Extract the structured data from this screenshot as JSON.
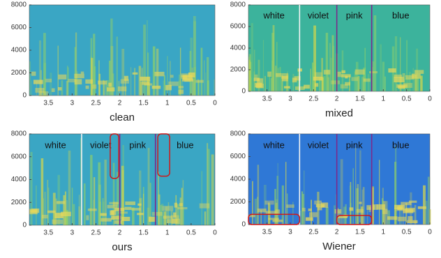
{
  "chart_data": [
    {
      "type": "spectrogram",
      "title": "clean",
      "background_color": "#3aa6c4",
      "xlim": [
        3.9,
        0
      ],
      "xticks": [
        3.5,
        3,
        2.5,
        2,
        1.5,
        1,
        0.5,
        0
      ],
      "ylim": [
        0,
        8000
      ],
      "yticks": [
        0,
        2000,
        4000,
        6000,
        8000
      ]
    },
    {
      "type": "spectrogram",
      "title": "mixed",
      "background_color": "#3cb39c",
      "xlim": [
        3.9,
        0
      ],
      "xticks": [
        3.5,
        3,
        2.5,
        2,
        1.5,
        1,
        0.5,
        0
      ],
      "ylim": [
        0,
        8000
      ],
      "yticks": [
        0,
        2000,
        4000,
        6000,
        8000
      ],
      "segments": [
        "white",
        "violet",
        "pink",
        "blue"
      ],
      "boundaries": [
        2.8,
        2.0,
        1.25
      ],
      "boundary_colors": [
        "#f4f4f4",
        "#7a2a8c",
        "#7a2a8c"
      ]
    },
    {
      "type": "spectrogram",
      "title": "ours",
      "background_color": "#3aa6c4",
      "xlim": [
        3.9,
        0
      ],
      "xticks": [
        3.5,
        3,
        2.5,
        2,
        1.5,
        1,
        0.5,
        0
      ],
      "ylim": [
        0,
        8000
      ],
      "yticks": [
        0,
        2000,
        4000,
        6000,
        8000
      ],
      "segments": [
        "white",
        "violet",
        "pink",
        "blue"
      ],
      "boundaries": [
        2.8,
        2.0,
        1.25
      ],
      "boundary_colors": [
        "#f4f4f4",
        "#7a2a8c",
        "#7a2a8c"
      ],
      "highlight_color": "#d01818",
      "highlights": [
        {
          "x": [
            2.2,
            2.02
          ],
          "y": [
            4100,
            8000
          ]
        },
        {
          "x": [
            1.2,
            0.95
          ],
          "y": [
            4300,
            8000
          ]
        }
      ]
    },
    {
      "type": "spectrogram",
      "title": "Wiener",
      "background_color": "#2f78d6",
      "xlim": [
        3.9,
        0
      ],
      "xticks": [
        3.5,
        3,
        2.5,
        2,
        1.5,
        1,
        0.5,
        0
      ],
      "ylim": [
        0,
        8000
      ],
      "yticks": [
        0,
        2000,
        4000,
        6000,
        8000
      ],
      "segments": [
        "white",
        "violet",
        "pink",
        "blue"
      ],
      "boundaries": [
        2.8,
        2.0,
        1.25
      ],
      "boundary_colors": [
        "#f4f4f4",
        "#7a2a8c",
        "#7a2a8c"
      ],
      "highlight_color": "#d01818",
      "highlights": [
        {
          "x": [
            3.9,
            2.8
          ],
          "y": [
            0,
            900
          ]
        },
        {
          "x": [
            2.0,
            1.25
          ],
          "y": [
            0,
            800
          ]
        }
      ]
    }
  ]
}
